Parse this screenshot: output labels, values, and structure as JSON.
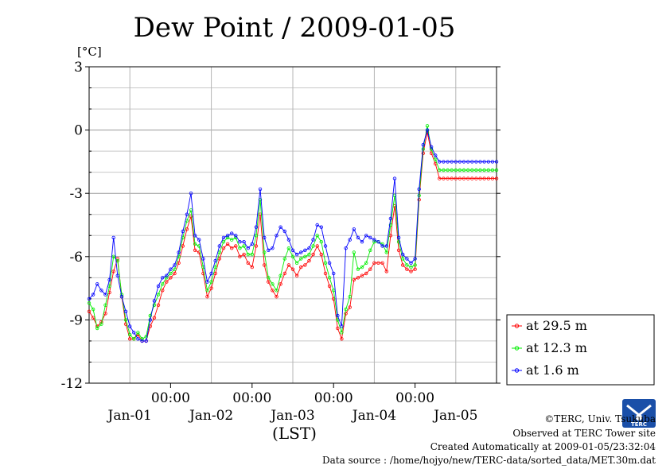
{
  "chart_data": {
    "type": "line",
    "title": "Dew Point / 2009-01-05",
    "unit": "[°C]",
    "xlabel": "(LST)",
    "ylim": [
      -12,
      3
    ],
    "yticks": [
      3,
      0,
      -3,
      -6,
      -9,
      -12
    ],
    "ytick_labels": [
      "3",
      "0",
      "-3",
      "-6",
      "-9",
      "-12"
    ],
    "xlim_days": [
      0,
      5
    ],
    "x_time_labels": [
      "00:00",
      "00:00",
      "00:00",
      "00:00"
    ],
    "x_date_labels": [
      "Jan-01",
      "Jan-02",
      "Jan-03",
      "Jan-04",
      "Jan-05"
    ],
    "grid": true,
    "legend_position": "right",
    "series": [
      {
        "name": "at 29.5 m",
        "color": "#ff0000",
        "x": [
          0.0,
          0.05,
          0.1,
          0.15,
          0.2,
          0.25,
          0.3,
          0.35,
          0.4,
          0.45,
          0.5,
          0.55,
          0.6,
          0.65,
          0.7,
          0.75,
          0.8,
          0.85,
          0.9,
          0.95,
          1.0,
          1.05,
          1.1,
          1.15,
          1.2,
          1.25,
          1.3,
          1.35,
          1.4,
          1.45,
          1.5,
          1.55,
          1.6,
          1.65,
          1.7,
          1.75,
          1.8,
          1.85,
          1.9,
          1.95,
          2.0,
          2.05,
          2.1,
          2.15,
          2.2,
          2.25,
          2.3,
          2.35,
          2.4,
          2.45,
          2.5,
          2.55,
          2.6,
          2.65,
          2.7,
          2.75,
          2.8,
          2.85,
          2.9,
          2.95,
          3.0,
          3.05,
          3.1,
          3.15,
          3.2,
          3.25,
          3.3,
          3.35,
          3.4,
          3.45,
          3.5,
          3.55,
          3.6,
          3.65,
          3.7,
          3.75,
          3.8,
          3.85,
          3.9,
          3.95,
          4.0,
          4.05,
          4.1,
          4.15,
          4.2,
          4.25,
          4.3,
          4.35,
          4.4,
          4.45,
          4.5,
          4.55,
          4.6,
          4.65,
          4.7,
          4.75,
          4.8,
          4.85,
          4.9,
          4.95,
          5.0
        ],
        "values": [
          -8.6,
          -8.9,
          -9.3,
          -9.1,
          -8.7,
          -7.7,
          -6.7,
          -6.1,
          -7.9,
          -9.2,
          -9.9,
          -9.9,
          -9.7,
          -10.0,
          -10.0,
          -9.3,
          -8.9,
          -8.3,
          -7.6,
          -7.2,
          -7.0,
          -6.8,
          -6.3,
          -5.5,
          -4.7,
          -4.1,
          -5.7,
          -5.8,
          -6.8,
          -7.9,
          -7.5,
          -6.8,
          -6.1,
          -5.6,
          -5.4,
          -5.6,
          -5.5,
          -6.0,
          -5.9,
          -6.3,
          -6.5,
          -5.5,
          -4.0,
          -6.4,
          -7.2,
          -7.6,
          -7.9,
          -7.3,
          -6.8,
          -6.4,
          -6.6,
          -6.9,
          -6.5,
          -6.4,
          -6.2,
          -5.9,
          -5.5,
          -5.9,
          -6.8,
          -7.4,
          -8.0,
          -9.4,
          -9.9,
          -8.7,
          -8.4,
          -7.1,
          -7.0,
          -6.9,
          -6.8,
          -6.6,
          -6.3,
          -6.3,
          -6.3,
          -6.7,
          -5.0,
          -3.6,
          -5.7,
          -6.4,
          -6.6,
          -6.7,
          -6.6,
          -3.3,
          -1.1,
          -0.1,
          -1.1,
          -1.6,
          -2.3,
          -2.3,
          -2.3,
          -2.3,
          -2.3,
          -2.3,
          -2.3,
          -2.3,
          -2.3,
          -2.3,
          -2.3,
          -2.3,
          -2.3,
          -2.3,
          -2.3
        ]
      },
      {
        "name": "at 12.3 m",
        "color": "#00ee00",
        "x": [
          0.0,
          0.05,
          0.1,
          0.15,
          0.2,
          0.25,
          0.3,
          0.35,
          0.4,
          0.45,
          0.5,
          0.55,
          0.6,
          0.65,
          0.7,
          0.75,
          0.8,
          0.85,
          0.9,
          0.95,
          1.0,
          1.05,
          1.1,
          1.15,
          1.2,
          1.25,
          1.3,
          1.35,
          1.4,
          1.45,
          1.5,
          1.55,
          1.6,
          1.65,
          1.7,
          1.75,
          1.8,
          1.85,
          1.9,
          1.95,
          2.0,
          2.05,
          2.1,
          2.15,
          2.2,
          2.25,
          2.3,
          2.35,
          2.4,
          2.45,
          2.5,
          2.55,
          2.6,
          2.65,
          2.7,
          2.75,
          2.8,
          2.85,
          2.9,
          2.95,
          3.0,
          3.05,
          3.1,
          3.15,
          3.2,
          3.25,
          3.3,
          3.35,
          3.4,
          3.45,
          3.5,
          3.55,
          3.6,
          3.65,
          3.7,
          3.75,
          3.8,
          3.85,
          3.9,
          3.95,
          4.0,
          4.05,
          4.1,
          4.15,
          4.2,
          4.25,
          4.3,
          4.35,
          4.4,
          4.45,
          4.5,
          4.55,
          4.6,
          4.65,
          4.7,
          4.75,
          4.8,
          4.85,
          4.9,
          4.95,
          5.0
        ],
        "values": [
          -8.2,
          -8.5,
          -9.4,
          -9.2,
          -8.3,
          -7.4,
          -6.0,
          -6.2,
          -7.8,
          -9.0,
          -9.7,
          -9.9,
          -9.6,
          -9.9,
          -9.8,
          -8.8,
          -8.3,
          -7.8,
          -7.3,
          -7.0,
          -6.8,
          -6.6,
          -6.0,
          -5.1,
          -4.3,
          -3.8,
          -5.4,
          -5.5,
          -6.5,
          -7.6,
          -7.2,
          -6.5,
          -5.8,
          -5.3,
          -5.1,
          -5.2,
          -5.1,
          -5.6,
          -5.5,
          -5.9,
          -5.9,
          -5.0,
          -3.3,
          -5.8,
          -7.0,
          -7.3,
          -7.6,
          -6.9,
          -6.1,
          -5.6,
          -6.0,
          -6.3,
          -6.1,
          -6.0,
          -5.9,
          -5.5,
          -5.0,
          -5.3,
          -6.3,
          -7.0,
          -7.6,
          -9.0,
          -9.6,
          -8.5,
          -7.9,
          -5.8,
          -6.6,
          -6.5,
          -6.3,
          -5.7,
          -5.3,
          -5.3,
          -5.4,
          -5.8,
          -4.5,
          -3.1,
          -5.3,
          -6.1,
          -6.4,
          -6.5,
          -6.4,
          -3.1,
          -0.9,
          0.2,
          -0.9,
          -1.4,
          -1.9,
          -1.9,
          -1.9,
          -1.9,
          -1.9,
          -1.9,
          -1.9,
          -1.9,
          -1.9,
          -1.9,
          -1.9,
          -1.9,
          -1.9,
          -1.9,
          -1.9
        ]
      },
      {
        "name": "at 1.6 m",
        "color": "#0000ff",
        "x": [
          0.0,
          0.05,
          0.1,
          0.15,
          0.2,
          0.25,
          0.3,
          0.35,
          0.4,
          0.45,
          0.5,
          0.55,
          0.6,
          0.65,
          0.7,
          0.75,
          0.8,
          0.85,
          0.9,
          0.95,
          1.0,
          1.05,
          1.1,
          1.15,
          1.2,
          1.25,
          1.3,
          1.35,
          1.4,
          1.45,
          1.5,
          1.55,
          1.6,
          1.65,
          1.7,
          1.75,
          1.8,
          1.85,
          1.9,
          1.95,
          2.0,
          2.05,
          2.1,
          2.15,
          2.2,
          2.25,
          2.3,
          2.35,
          2.4,
          2.45,
          2.5,
          2.55,
          2.6,
          2.65,
          2.7,
          2.75,
          2.8,
          2.85,
          2.9,
          2.95,
          3.0,
          3.05,
          3.1,
          3.15,
          3.2,
          3.25,
          3.3,
          3.35,
          3.4,
          3.45,
          3.5,
          3.55,
          3.6,
          3.65,
          3.7,
          3.75,
          3.8,
          3.85,
          3.9,
          3.95,
          4.0,
          4.05,
          4.1,
          4.15,
          4.2,
          4.25,
          4.3,
          4.35,
          4.4,
          4.45,
          4.5,
          4.55,
          4.6,
          4.65,
          4.7,
          4.75,
          4.8,
          4.85,
          4.9,
          4.95,
          5.0
        ],
        "values": [
          -8.0,
          -7.8,
          -7.3,
          -7.6,
          -7.8,
          -7.1,
          -5.1,
          -6.9,
          -7.9,
          -8.6,
          -9.3,
          -9.6,
          -9.9,
          -10.0,
          -10.0,
          -9.0,
          -8.1,
          -7.4,
          -7.0,
          -6.9,
          -6.6,
          -6.4,
          -5.8,
          -4.8,
          -4.0,
          -3.0,
          -5.0,
          -5.2,
          -6.1,
          -7.2,
          -6.8,
          -6.2,
          -5.5,
          -5.1,
          -5.0,
          -4.9,
          -5.0,
          -5.3,
          -5.3,
          -5.6,
          -5.4,
          -4.6,
          -2.8,
          -5.1,
          -5.7,
          -5.6,
          -5.0,
          -4.6,
          -4.8,
          -5.2,
          -5.7,
          -5.9,
          -5.8,
          -5.7,
          -5.6,
          -5.2,
          -4.5,
          -4.6,
          -5.5,
          -6.3,
          -6.8,
          -8.8,
          -9.3,
          -5.6,
          -5.2,
          -4.7,
          -5.1,
          -5.3,
          -5.0,
          -5.1,
          -5.2,
          -5.3,
          -5.5,
          -5.5,
          -4.2,
          -2.3,
          -5.1,
          -5.9,
          -6.1,
          -6.3,
          -6.1,
          -2.8,
          -0.7,
          0.0,
          -0.8,
          -1.2,
          -1.5,
          -1.5,
          -1.5,
          -1.5,
          -1.5,
          -1.5,
          -1.5,
          -1.5,
          -1.5,
          -1.5,
          -1.5,
          -1.5,
          -1.5,
          -1.5,
          -1.5
        ]
      }
    ]
  },
  "footer": {
    "credit": "©TERC, Univ. Tsukuba",
    "site": "Observed at TERC Tower site",
    "created": "Created Automatically at 2009-01-05/23:32:04",
    "source": "Data source : /home/hojyo/new/TERC-data/sorted_data/MET.30m.dat"
  },
  "logo": {
    "name": "terc-logo",
    "text": "TERC"
  }
}
